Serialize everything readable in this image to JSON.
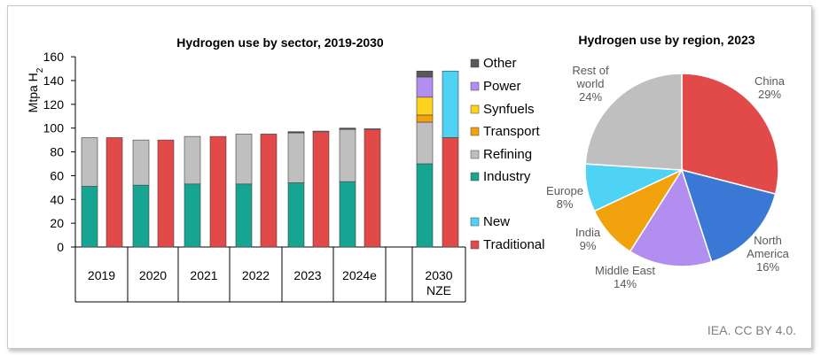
{
  "chart_data": [
    {
      "type": "bar",
      "title": "Hydrogen use by sector, 2019-2030",
      "ylabel": "Mtpa H",
      "ylabel_subscript": "2",
      "ylim": [
        0,
        160
      ],
      "yticks": [
        "0",
        "20",
        "40",
        "60",
        "80",
        "100",
        "120",
        "140",
        "160"
      ],
      "categories": [
        "2019",
        "2020",
        "2021",
        "2022",
        "2023",
        "2024e",
        "2030 NZE"
      ],
      "category_lines": [
        [
          "2019"
        ],
        [
          "2020"
        ],
        [
          "2021"
        ],
        [
          "2022"
        ],
        [
          "2023"
        ],
        [
          "2024e"
        ],
        [
          "2030",
          "NZE"
        ]
      ],
      "legend": [
        {
          "key": "other",
          "label": "Other",
          "color": "#595959"
        },
        {
          "key": "power",
          "label": "Power",
          "color": "#b28ef0"
        },
        {
          "key": "synfuels",
          "label": "Synfuels",
          "color": "#ffd21f"
        },
        {
          "key": "transport",
          "label": "Transport",
          "color": "#f2a20c"
        },
        {
          "key": "refining",
          "label": "Refining",
          "color": "#bfbfbf"
        },
        {
          "key": "industry",
          "label": "Industry",
          "color": "#16a593"
        },
        {
          "key": "new",
          "label": "New",
          "color": "#4fd3f5"
        },
        {
          "key": "traditional",
          "label": "Traditional",
          "color": "#e24a4a"
        }
      ],
      "sector_series": [
        {
          "name": "Industry",
          "color": "#16a593",
          "values": [
            51,
            52,
            53,
            53,
            54,
            55,
            70
          ]
        },
        {
          "name": "Refining",
          "color": "#bfbfbf",
          "values": [
            41,
            38,
            40,
            42,
            42,
            44,
            35
          ]
        },
        {
          "name": "Transport",
          "color": "#f2a20c",
          "values": [
            0,
            0,
            0,
            0,
            0,
            0,
            6
          ]
        },
        {
          "name": "Synfuels",
          "color": "#ffd21f",
          "values": [
            0,
            0,
            0,
            0,
            0,
            0,
            15
          ]
        },
        {
          "name": "Power",
          "color": "#b28ef0",
          "values": [
            0,
            0,
            0,
            0,
            0.5,
            0.5,
            17
          ]
        },
        {
          "name": "Other",
          "color": "#595959",
          "values": [
            0,
            0,
            0,
            0,
            0.5,
            0.5,
            5
          ]
        }
      ],
      "origin_series": [
        {
          "name": "Traditional",
          "color": "#e24a4a",
          "values": [
            92,
            90,
            93,
            95,
            97,
            99,
            92
          ]
        },
        {
          "name": "New",
          "color": "#4fd3f5",
          "values": [
            0,
            0,
            0,
            0,
            0.5,
            0.5,
            56
          ]
        }
      ]
    },
    {
      "type": "pie",
      "title": "Hydrogen use by region, 2023",
      "slices": [
        {
          "lines": [
            "China",
            "29%"
          ],
          "value": 29,
          "color": "#e24a4a"
        },
        {
          "lines": [
            "North",
            "America",
            "16%"
          ],
          "value": 16,
          "color": "#3a78d6"
        },
        {
          "lines": [
            "Middle East",
            "14%"
          ],
          "value": 14,
          "color": "#b28ef0"
        },
        {
          "lines": [
            "India",
            "9%"
          ],
          "value": 9,
          "color": "#f2a20c"
        },
        {
          "lines": [
            "Europe",
            "8%"
          ],
          "value": 8,
          "color": "#4fd3f5"
        },
        {
          "lines": [
            "Rest of",
            "world",
            "24%"
          ],
          "value": 24,
          "color": "#bfbfbf"
        }
      ]
    }
  ],
  "credit": "IEA. CC BY 4.0."
}
